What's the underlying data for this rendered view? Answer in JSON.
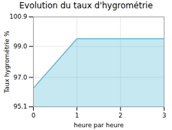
{
  "chart_data": {
    "type": "area",
    "title": "Evolution du taux d'hygrométrie",
    "xlabel": "heure par heure",
    "ylabel": "Taux hygrométrie %",
    "x": [
      0,
      1,
      3
    ],
    "values": [
      96.3,
      99.5,
      99.5
    ],
    "color": "#5bbcd8",
    "xlim": [
      0,
      3
    ],
    "ylim": [
      95.1,
      100.9
    ],
    "xticks": [
      0,
      1,
      2,
      3
    ],
    "yticks": [
      95.1,
      {
        "value": 97.0,
        "label": "97.0"
      },
      {
        "value": 99.0,
        "label": "99.0"
      },
      100.9
    ],
    "grid": true
  }
}
